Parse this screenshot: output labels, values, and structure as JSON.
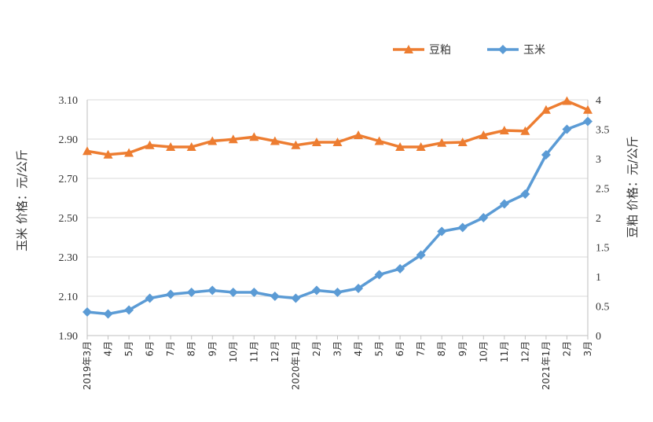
{
  "chart_data": {
    "type": "line",
    "categories": [
      "2019年3月",
      "4月",
      "5月",
      "6月",
      "7月",
      "8月",
      "9月",
      "10月",
      "11月",
      "12月",
      "2020年1月",
      "2月",
      "3月",
      "4月",
      "5月",
      "6月",
      "7月",
      "8月",
      "9月",
      "10月",
      "11月",
      "12月",
      "2021年1月",
      "2月",
      "3月"
    ],
    "series": [
      {
        "name": "豆粕",
        "axis": "right",
        "color": "#ED7D31",
        "marker": "triangle",
        "values": [
          3.13,
          3.07,
          3.1,
          3.23,
          3.2,
          3.2,
          3.3,
          3.33,
          3.37,
          3.3,
          3.23,
          3.28,
          3.28,
          3.4,
          3.3,
          3.2,
          3.2,
          3.27,
          3.28,
          3.4,
          3.48,
          3.47,
          3.83,
          3.98,
          3.83
        ]
      },
      {
        "name": "玉米",
        "axis": "left",
        "color": "#5B9BD5",
        "marker": "diamond",
        "values": [
          2.02,
          2.01,
          2.03,
          2.09,
          2.11,
          2.12,
          2.13,
          2.12,
          2.12,
          2.1,
          2.09,
          2.13,
          2.12,
          2.14,
          2.21,
          2.24,
          2.31,
          2.43,
          2.45,
          2.5,
          2.57,
          2.62,
          2.82,
          2.95,
          2.99
        ]
      }
    ],
    "y_left": {
      "label": "玉米   价格：元/公斤",
      "ylim": [
        1.9,
        3.1
      ],
      "ticks": [
        "1.90",
        "2.10",
        "2.30",
        "2.50",
        "2.70",
        "2.90",
        "3.10"
      ]
    },
    "y_right": {
      "label": "豆粕   价格：元/公斤",
      "ylim": [
        0,
        4
      ],
      "ticks": [
        "0",
        "0.5",
        "1",
        "1.5",
        "2",
        "2.5",
        "3",
        "3.5",
        "4"
      ]
    },
    "legend": {
      "placement": "top-right",
      "items": [
        "豆粕",
        "玉米"
      ]
    },
    "grid": true
  }
}
